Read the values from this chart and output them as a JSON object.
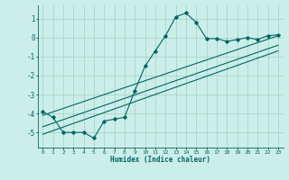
{
  "xlabel": "Humidex (Indice chaleur)",
  "ylabel": "",
  "xlim": [
    -0.5,
    23.5
  ],
  "ylim": [
    -5.8,
    1.7
  ],
  "yticks": [
    1,
    0,
    -1,
    -2,
    -3,
    -4,
    -5
  ],
  "xticks": [
    0,
    1,
    2,
    3,
    4,
    5,
    6,
    7,
    8,
    9,
    10,
    11,
    12,
    13,
    14,
    15,
    16,
    17,
    18,
    19,
    20,
    21,
    22,
    23
  ],
  "bg_color": "#cceee8",
  "line_color": "#006666",
  "grid_color": "#aad4cc",
  "data_x": [
    0,
    1,
    2,
    3,
    4,
    5,
    6,
    7,
    8,
    9,
    10,
    11,
    12,
    13,
    14,
    15,
    16,
    17,
    18,
    19,
    20,
    21,
    22,
    23
  ],
  "data_y": [
    -3.9,
    -4.2,
    -5.0,
    -5.0,
    -5.0,
    -5.3,
    -4.4,
    -4.3,
    -4.2,
    -2.8,
    -1.5,
    -0.7,
    0.1,
    1.1,
    1.3,
    0.8,
    -0.05,
    -0.05,
    -0.2,
    -0.1,
    0.0,
    -0.1,
    0.1,
    0.15
  ],
  "line1_x": [
    0,
    23
  ],
  "line1_y": [
    -4.1,
    0.1
  ],
  "line2_x": [
    0,
    23
  ],
  "line2_y": [
    -4.7,
    -0.4
  ],
  "line3_x": [
    0,
    23
  ],
  "line3_y": [
    -5.1,
    -0.7
  ]
}
